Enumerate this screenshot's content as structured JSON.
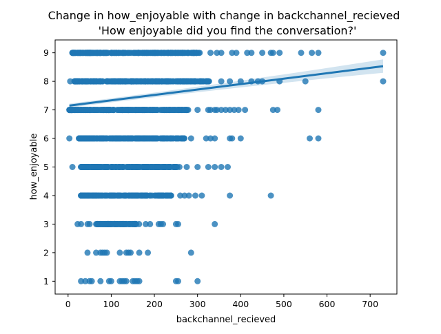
{
  "chart_data": {
    "type": "scatter",
    "title": "Change in how_enjoyable with change in backchannel_recieved\n'How enjoyable did you find the conversation?'",
    "title_lines": [
      "Change in how_enjoyable with change in backchannel_recieved",
      "'How enjoyable did you find the conversation?'"
    ],
    "xlabel": "backchannel_recieved",
    "ylabel": "how_enjoyable",
    "xlim": [
      -30,
      762
    ],
    "ylim": [
      0.55,
      9.45
    ],
    "xticks": [
      0,
      100,
      200,
      300,
      400,
      500,
      600,
      700
    ],
    "yticks": [
      1,
      2,
      3,
      4,
      5,
      6,
      7,
      8,
      9
    ],
    "grid": false,
    "point_color": "#1f77b4",
    "point_alpha": 0.8,
    "regression": {
      "x": [
        3,
        730
      ],
      "y": [
        7.15,
        8.53
      ],
      "ci_lower": [
        7.08,
        8.3
      ],
      "ci_upper": [
        7.22,
        8.77
      ],
      "color": "#1f77b4"
    },
    "series": [
      {
        "values_by_level": {
          "9": {
            "dense": [
              [
                10,
                305
              ]
            ],
            "points": [
              330,
              345,
              355,
              380,
              390,
              415,
              425,
              450,
              470,
              475,
              490,
              540,
              565,
              580,
              730
            ]
          },
          "8": {
            "dense": [
              [
                15,
                330
              ]
            ],
            "points": [
              5,
              355,
              375,
              400,
              425,
              440,
              450,
              490,
              550,
              730
            ]
          },
          "7": {
            "dense": [
              [
                3,
                285
              ]
            ],
            "points": [
              300,
              325,
              330,
              340,
              345,
              355,
              365,
              375,
              385,
              395,
              410,
              475,
              485,
              580
            ]
          },
          "6": {
            "dense": [
              [
                25,
                270
              ]
            ],
            "points": [
              3,
              285,
              320,
              330,
              340,
              375,
              380,
              400,
              560,
              580
            ]
          },
          "5": {
            "dense": [
              [
                30,
                260
              ]
            ],
            "points": [
              10,
              275,
              300,
              325,
              340,
              355,
              370
            ]
          },
          "4": {
            "dense": [
              [
                30,
                240
              ]
            ],
            "points": [
              260,
              270,
              280,
              295,
              310,
              375,
              470
            ]
          },
          "3": {
            "dense": [
              [
                65,
                165
              ]
            ],
            "points": [
              22,
              30,
              45,
              50,
              180,
              190,
              210,
              215,
              220,
              250,
              255,
              340
            ]
          },
          "2": {
            "dense": [],
            "points": [
              45,
              65,
              75,
              80,
              85,
              90,
              120,
              135,
              140,
              145,
              165,
              185,
              285
            ]
          },
          "1": {
            "dense": [],
            "points": [
              30,
              40,
              50,
              55,
              75,
              95,
              100,
              120,
              125,
              130,
              135,
              150,
              155,
              160,
              165,
              250,
              255,
              300
            ]
          }
        }
      }
    ]
  }
}
